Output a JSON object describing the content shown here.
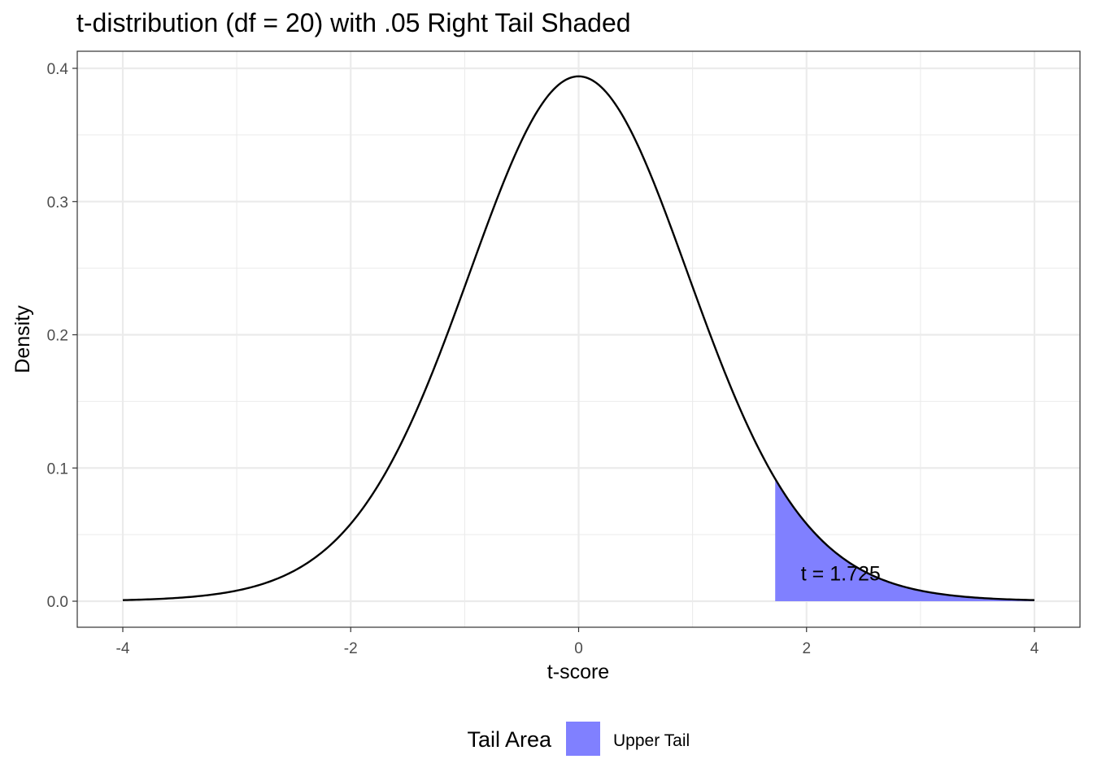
{
  "chart_data": {
    "type": "area",
    "title": "t-distribution (df = 20) with .05 Right Tail Shaded",
    "xlabel": "t-score",
    "ylabel": "Density",
    "xlim": [
      -4,
      4
    ],
    "ylim": [
      0,
      0.4
    ],
    "x_ticks": [
      -4,
      -2,
      0,
      2,
      4
    ],
    "y_ticks": [
      0.0,
      0.1,
      0.2,
      0.3,
      0.4
    ],
    "x_tick_labels": [
      "-4",
      "-2",
      "0",
      "2",
      "4"
    ],
    "y_tick_labels": [
      "0.0",
      "0.1",
      "0.2",
      "0.3",
      "0.4"
    ],
    "grid": true,
    "df": 20,
    "critical_t": 1.725,
    "curve": {
      "x": [
        -4,
        -3.5,
        -3,
        -2.5,
        -2,
        -1.75,
        -1.5,
        -1.25,
        -1,
        -0.75,
        -0.5,
        -0.25,
        0,
        0.25,
        0.5,
        0.75,
        1,
        1.25,
        1.5,
        1.725,
        2,
        2.5,
        3,
        3.5,
        4
      ],
      "y": [
        0.0011,
        0.0023,
        0.0077,
        0.0188,
        0.0581,
        0.0876,
        0.1268,
        0.1741,
        0.236,
        0.2931,
        0.3438,
        0.3803,
        0.394,
        0.3803,
        0.3438,
        0.2931,
        0.236,
        0.1741,
        0.1268,
        0.0905,
        0.0581,
        0.0188,
        0.0077,
        0.0023,
        0.0011
      ]
    },
    "shaded_region": {
      "from": 1.725,
      "to": 4,
      "label": "Upper Tail",
      "color": "#8080FF"
    },
    "annotation": {
      "text": "t = 1.725",
      "x": 2.3,
      "y": 0.021
    },
    "legend": {
      "title": "Tail Area",
      "items": [
        {
          "label": "Upper Tail",
          "color": "#8080FF"
        }
      ],
      "position": "bottom"
    },
    "colors": {
      "curve": "#000000",
      "grid": "#EBEBEB",
      "panel_border": "#333333",
      "tick_text": "#4D4D4D"
    }
  }
}
